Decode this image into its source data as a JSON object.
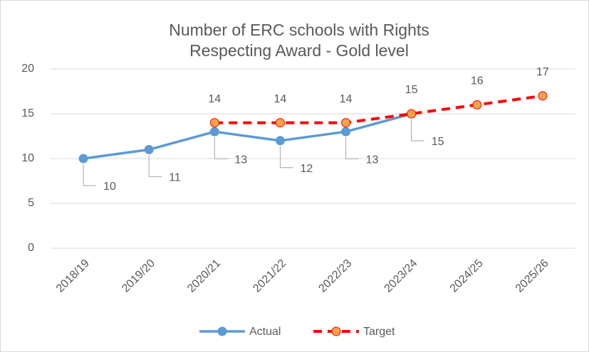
{
  "chart_data": {
    "type": "line",
    "title": "Number of ERC schools with Rights Respecting Award - Gold level",
    "categories": [
      "2018/19",
      "2019/20",
      "2020/21",
      "2021/22",
      "2022/23",
      "2023/24",
      "2024/25",
      "2025/26"
    ],
    "series": [
      {
        "name": "Actual",
        "color": "#5b9bd5",
        "marker_color": "#5b9bd5",
        "dashed": false,
        "label_position": "below",
        "values": [
          10,
          11,
          13,
          12,
          13,
          15,
          null,
          null
        ]
      },
      {
        "name": "Target",
        "color": "#ff0000",
        "marker_color": "#f4a447",
        "dashed": true,
        "label_position": "above",
        "values": [
          null,
          null,
          14,
          14,
          14,
          15,
          16,
          17
        ]
      }
    ],
    "ylim": [
      0,
      20
    ],
    "yticks": [
      0,
      5,
      10,
      15,
      20
    ],
    "grid": true,
    "legend": "bottom"
  }
}
